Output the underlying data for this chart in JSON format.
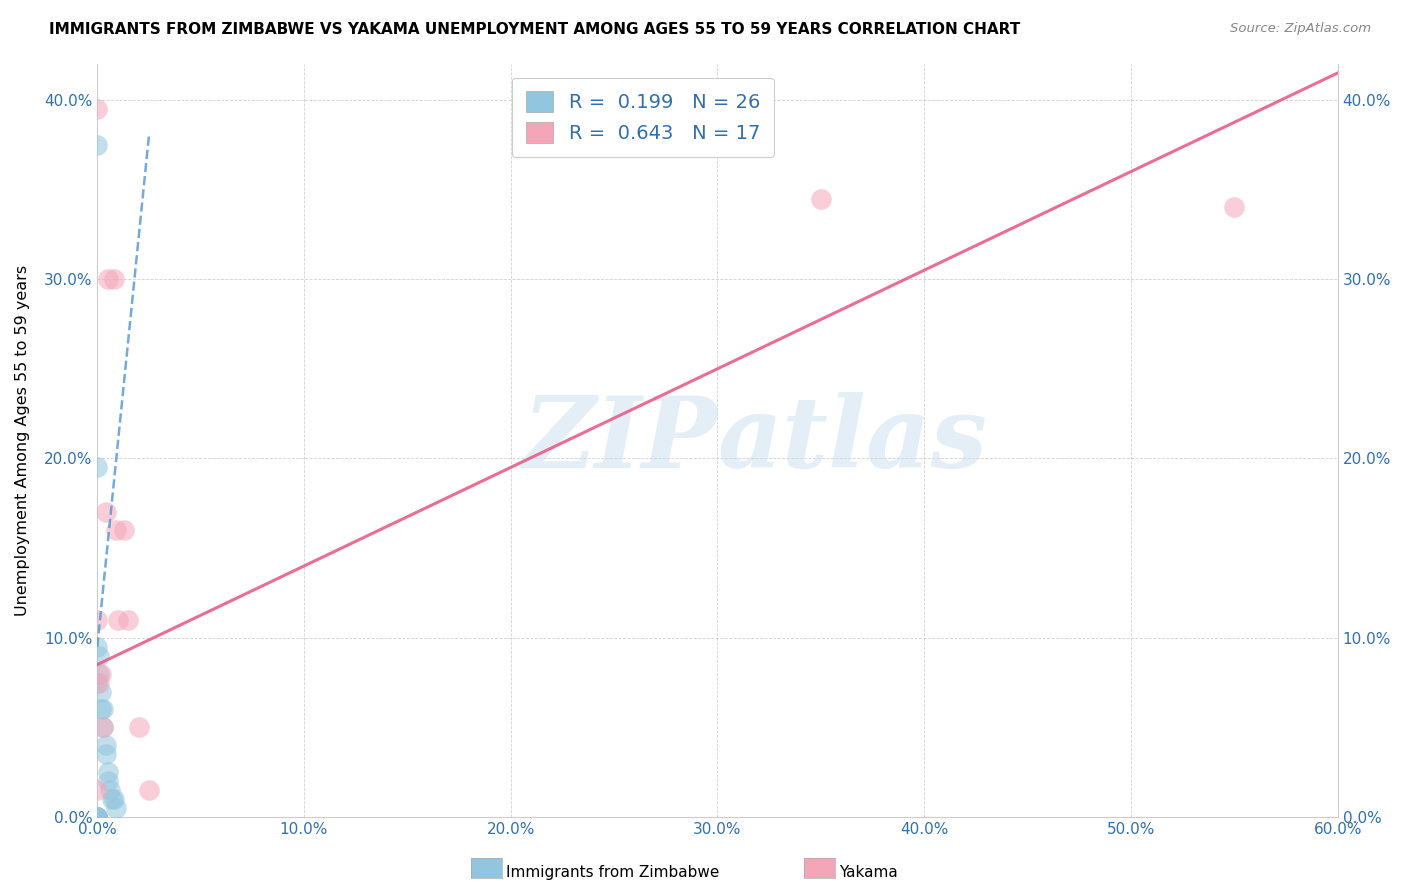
{
  "title": "IMMIGRANTS FROM ZIMBABWE VS YAKAMA UNEMPLOYMENT AMONG AGES 55 TO 59 YEARS CORRELATION CHART",
  "source": "Source: ZipAtlas.com",
  "ylabel": "Unemployment Among Ages 55 to 59 years",
  "xlim": [
    0.0,
    0.6
  ],
  "ylim": [
    0.0,
    0.42
  ],
  "x_ticks": [
    0.0,
    0.1,
    0.2,
    0.3,
    0.4,
    0.5,
    0.6
  ],
  "x_tick_labels": [
    "0.0%",
    "10.0%",
    "20.0%",
    "30.0%",
    "40.0%",
    "50.0%",
    "60.0%"
  ],
  "y_ticks": [
    0.0,
    0.1,
    0.2,
    0.3,
    0.4
  ],
  "y_tick_labels": [
    "0.0%",
    "10.0%",
    "20.0%",
    "30.0%",
    "40.0%"
  ],
  "watermark_zip": "ZIP",
  "watermark_atlas": "atlas",
  "legend_r1": "R =  0.199   N = 26",
  "legend_r2": "R =  0.643   N = 17",
  "r1_color": "#92c5de",
  "r2_color": "#f4a6b8",
  "scatter_color1": "#92c5de",
  "scatter_color2": "#f4a6b8",
  "trendline1_color": "#5b9bd5",
  "trendline2_color": "#e85d8a",
  "blue_points_x": [
    0.0,
    0.0,
    0.0,
    0.0,
    0.0,
    0.0,
    0.0,
    0.0,
    0.0,
    0.0,
    0.0,
    0.001,
    0.001,
    0.002,
    0.002,
    0.003,
    0.003,
    0.004,
    0.004,
    0.005,
    0.005,
    0.006,
    0.007,
    0.008,
    0.009,
    0.0
  ],
  "blue_points_y": [
    0.375,
    0.0,
    0.0,
    0.0,
    0.0,
    0.0,
    0.0,
    0.0,
    0.0,
    0.195,
    0.095,
    0.09,
    0.08,
    0.07,
    0.06,
    0.06,
    0.05,
    0.04,
    0.035,
    0.025,
    0.02,
    0.015,
    0.01,
    0.01,
    0.005,
    0.075
  ],
  "pink_points_x": [
    0.0,
    0.0,
    0.001,
    0.002,
    0.003,
    0.004,
    0.005,
    0.008,
    0.009,
    0.01,
    0.013,
    0.015,
    0.02,
    0.025,
    0.35,
    0.55,
    0.0
  ],
  "pink_points_y": [
    0.395,
    0.11,
    0.075,
    0.08,
    0.05,
    0.17,
    0.3,
    0.3,
    0.16,
    0.11,
    0.16,
    0.11,
    0.05,
    0.015,
    0.345,
    0.34,
    0.015
  ],
  "trendline1_x": [
    0.0,
    0.025
  ],
  "trendline1_y": [
    0.095,
    0.38
  ],
  "trendline2_x": [
    0.0,
    0.6
  ],
  "trendline2_y": [
    0.085,
    0.415
  ]
}
